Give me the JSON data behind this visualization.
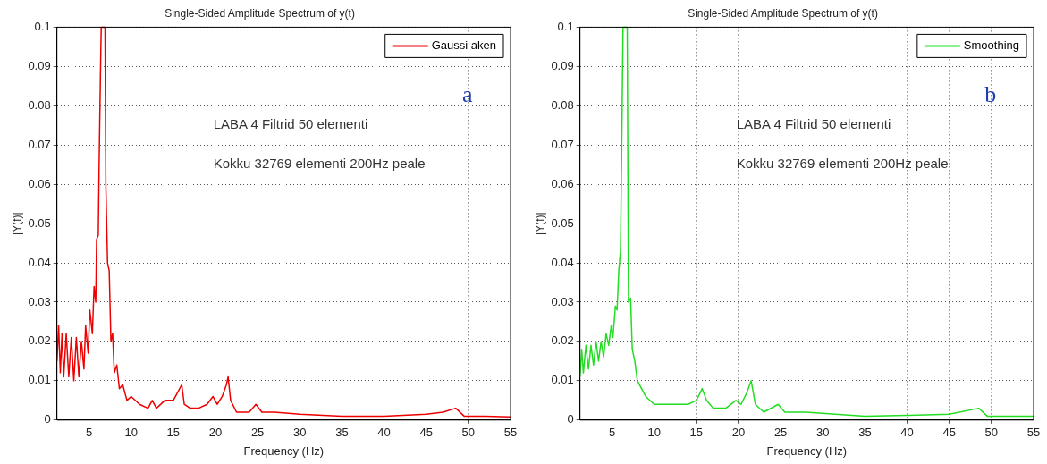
{
  "chart_data": [
    {
      "type": "line",
      "title": "Single-Sided Amplitude Spectrum of y(t)",
      "xlabel": "Frequency (Hz)",
      "ylabel": "|Y(f)|",
      "xlim": [
        1.2,
        55
      ],
      "ylim": [
        0,
        0.1
      ],
      "xticks": [
        5,
        10,
        15,
        20,
        25,
        30,
        35,
        40,
        45,
        50,
        55
      ],
      "yticks": [
        0,
        0.01,
        0.02,
        0.03,
        0.04,
        0.05,
        0.06,
        0.07,
        0.08,
        0.09,
        0.1
      ],
      "grid": true,
      "legend": "top right",
      "marker": "none",
      "annotations": [
        "LABA 4 Filtrid 50 elementi",
        "Kokku 32769 elementi 200Hz peale",
        "a"
      ],
      "x": [
        1.2,
        1.4,
        1.6,
        1.8,
        2.0,
        2.3,
        2.6,
        2.9,
        3.2,
        3.5,
        3.8,
        4.1,
        4.4,
        4.6,
        4.9,
        5.1,
        5.4,
        5.6,
        5.8,
        5.9,
        6.1,
        6.2,
        6.35,
        6.45,
        6.9,
        7.0,
        7.2,
        7.4,
        7.6,
        7.8,
        8.0,
        8.3,
        8.6,
        9.0,
        9.5,
        10,
        11,
        12,
        12.5,
        13,
        14,
        15,
        15.5,
        16,
        16.3,
        17,
        18,
        19,
        19.7,
        20.2,
        20.8,
        21.3,
        21.5,
        21.8,
        22.5,
        24,
        24.8,
        25.5,
        27,
        30,
        35,
        40,
        45,
        47,
        48.5,
        49.5,
        52,
        55
      ],
      "series": [
        {
          "name": "Gaussi aken",
          "color": "#ee0000",
          "values": [
            0.015,
            0.024,
            0.012,
            0.022,
            0.011,
            0.022,
            0.011,
            0.021,
            0.01,
            0.021,
            0.011,
            0.02,
            0.013,
            0.024,
            0.017,
            0.028,
            0.022,
            0.034,
            0.03,
            0.046,
            0.047,
            0.065,
            0.087,
            0.1,
            0.1,
            0.06,
            0.04,
            0.038,
            0.02,
            0.022,
            0.012,
            0.014,
            0.008,
            0.009,
            0.005,
            0.006,
            0.004,
            0.003,
            0.005,
            0.003,
            0.005,
            0.005,
            0.007,
            0.009,
            0.004,
            0.003,
            0.003,
            0.004,
            0.006,
            0.004,
            0.006,
            0.009,
            0.011,
            0.005,
            0.002,
            0.002,
            0.004,
            0.002,
            0.002,
            0.0015,
            0.001,
            0.001,
            0.0015,
            0.002,
            0.003,
            0.001,
            0.001,
            0.0008
          ]
        }
      ]
    },
    {
      "type": "line",
      "title": "Single-Sided Amplitude Spectrum of y(t)",
      "xlabel": "Frequency (Hz)",
      "ylabel": "|Y(f)|",
      "xlim": [
        1.2,
        55
      ],
      "ylim": [
        0,
        0.1
      ],
      "xticks": [
        5,
        10,
        15,
        20,
        25,
        30,
        35,
        40,
        45,
        50,
        55
      ],
      "yticks": [
        0,
        0.01,
        0.02,
        0.03,
        0.04,
        0.05,
        0.06,
        0.07,
        0.08,
        0.09,
        0.1
      ],
      "grid": true,
      "legend": "top right",
      "marker": "none",
      "annotations": [
        "LABA 4 Filtrid 50 elementi",
        "Kokku 32769 elementi 200Hz peale",
        "b"
      ],
      "x": [
        1.2,
        1.4,
        1.6,
        1.9,
        2.2,
        2.5,
        2.8,
        3.1,
        3.4,
        3.7,
        4.0,
        4.3,
        4.6,
        4.9,
        5.1,
        5.4,
        5.6,
        5.8,
        6.0,
        6.15,
        6.3,
        6.8,
        6.95,
        7.2,
        7.4,
        7.7,
        8.0,
        8.5,
        9,
        10,
        12,
        14,
        15,
        15.7,
        16.2,
        17,
        18.5,
        19.7,
        20.3,
        21,
        21.5,
        22,
        23,
        24.7,
        25.5,
        28,
        35,
        40,
        45,
        48.5,
        49.5,
        55
      ],
      "series": [
        {
          "name": "Smoothing",
          "color": "#22dd22",
          "values": [
            0.011,
            0.018,
            0.012,
            0.019,
            0.013,
            0.019,
            0.014,
            0.02,
            0.015,
            0.02,
            0.016,
            0.022,
            0.019,
            0.024,
            0.021,
            0.029,
            0.028,
            0.038,
            0.043,
            0.07,
            0.1,
            0.1,
            0.03,
            0.031,
            0.018,
            0.015,
            0.01,
            0.008,
            0.006,
            0.004,
            0.004,
            0.004,
            0.005,
            0.008,
            0.005,
            0.003,
            0.003,
            0.005,
            0.004,
            0.007,
            0.01,
            0.004,
            0.002,
            0.004,
            0.002,
            0.002,
            0.001,
            0.0012,
            0.0015,
            0.003,
            0.001,
            0.001
          ]
        }
      ]
    }
  ]
}
